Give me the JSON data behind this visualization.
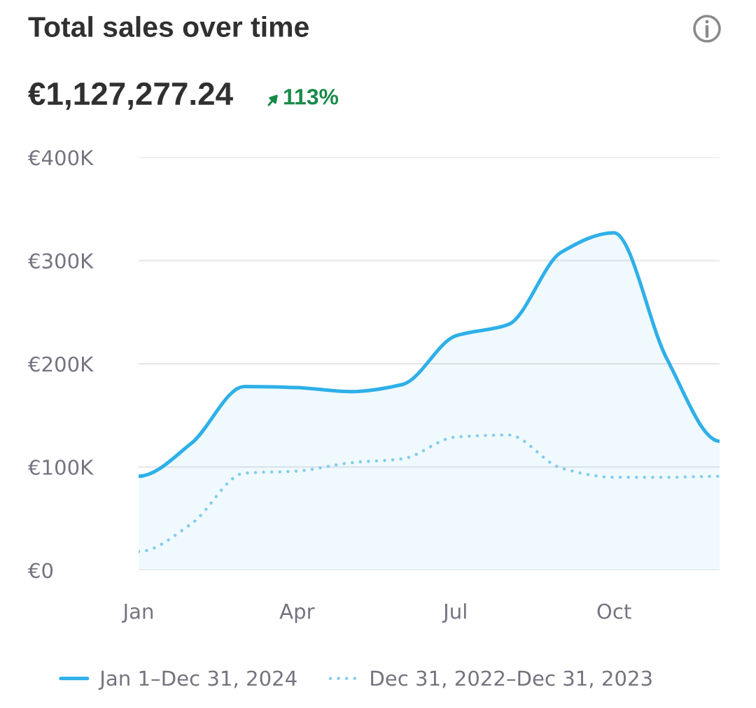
{
  "chart_data": {
    "type": "line",
    "title": "Total sales over time",
    "subtitle": "€1,127,277.24",
    "annotations": [
      "113%"
    ],
    "categories": [
      "Jan",
      null,
      null,
      "Apr",
      null,
      null,
      "Jul",
      null,
      null,
      "Oct",
      null,
      null
    ],
    "series": [
      {
        "name": "Jan 1–Dec 31, 2024",
        "type": "area",
        "color": "#2eb0e8",
        "line_style": "solid",
        "values": [
          91000,
          123000,
          178000,
          177000,
          173000,
          180000,
          227000,
          238000,
          308000,
          327000,
          205000,
          125000
        ]
      },
      {
        "name": "Dec 31, 2022–Dec 31, 2023",
        "color": "#82cdee",
        "line_style": "dotted",
        "values": [
          18000,
          45000,
          94000,
          96000,
          104000,
          108000,
          129000,
          131000,
          99000,
          90000,
          90000,
          91000
        ]
      }
    ],
    "ylim": [
      0,
      400000
    ],
    "yticks": [
      {
        "value": 0,
        "label": "€0"
      },
      {
        "value": 100000,
        "label": "€100K"
      },
      {
        "value": 200000,
        "label": "€200K"
      },
      {
        "value": 300000,
        "label": "€300K"
      },
      {
        "value": 400000,
        "label": "€400K"
      }
    ],
    "grid": "y",
    "legend": "bottom"
  }
}
